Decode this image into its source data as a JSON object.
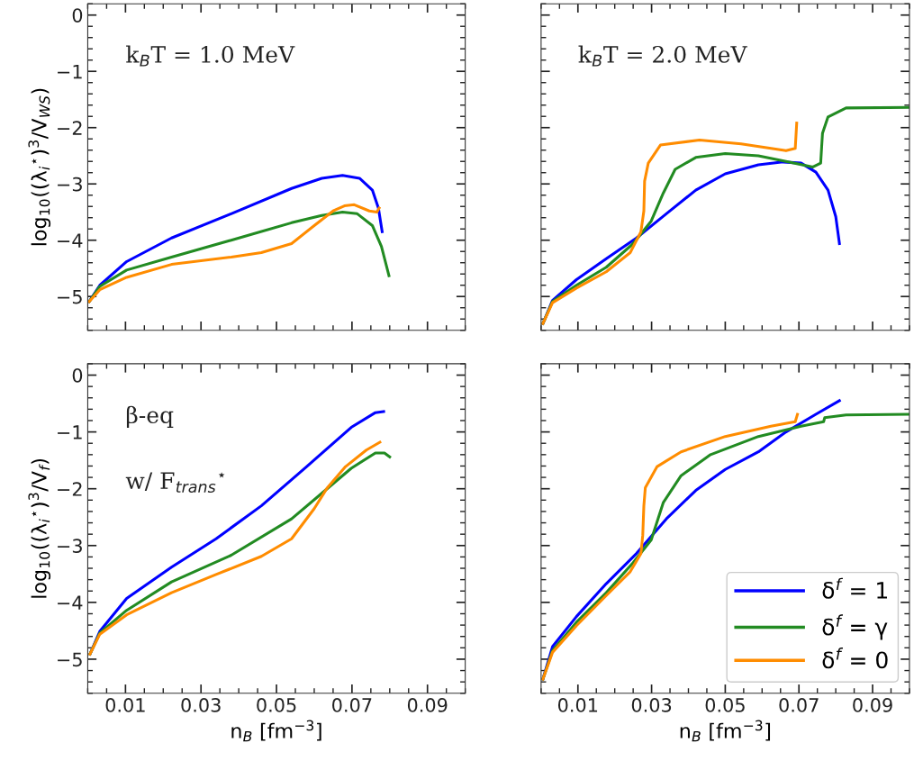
{
  "chart_data": [
    {
      "type": "line",
      "ylabel": "log$_{10}$((λ$_{i}$$^{⋆}$)$^{3}$/V$_{WS}$)",
      "annotations": [
        "k$_{B}$T = 1.0 MeV"
      ],
      "xlim": [
        0,
        0.1
      ],
      "ylim": [
        -5.6,
        0.2
      ],
      "xticks": [
        {
          "value": 0.01,
          "label": null
        },
        {
          "value": 0.03,
          "label": null
        },
        {
          "value": 0.05,
          "label": null
        },
        {
          "value": 0.07,
          "label": null
        },
        {
          "value": 0.09,
          "label": null
        }
      ],
      "yticks": [
        0,
        {
          "value": -1,
          "label": "−1"
        },
        {
          "value": -2,
          "label": "−2"
        },
        {
          "value": -3,
          "label": "−3"
        },
        {
          "value": -4,
          "label": "−4"
        },
        {
          "value": -5,
          "label": "−5"
        }
      ],
      "tick_labels": "y",
      "line_style": "solid",
      "marker": "none",
      "grid": false,
      "legend": false,
      "series": [
        {
          "color": "#0000ff",
          "x": [
            0.0004,
            0.0032,
            0.0103,
            0.0222,
            0.038,
            0.054,
            0.062,
            0.0675,
            0.072,
            0.0754,
            0.077,
            0.078
          ],
          "values": [
            -5.09,
            -4.8,
            -4.38,
            -3.96,
            -3.53,
            -3.08,
            -2.9,
            -2.85,
            -2.9,
            -3.11,
            -3.43,
            -3.85
          ]
        },
        {
          "color": "#228b22",
          "x": [
            0.0004,
            0.0032,
            0.0103,
            0.0222,
            0.038,
            0.054,
            0.062,
            0.0675,
            0.0714,
            0.0754,
            0.0778,
            0.0798
          ],
          "values": [
            -5.09,
            -4.82,
            -4.53,
            -4.3,
            -4.0,
            -3.69,
            -3.56,
            -3.5,
            -3.53,
            -3.74,
            -4.11,
            -4.63
          ]
        },
        {
          "color": "#ff8c00",
          "x": [
            0.0004,
            0.0032,
            0.0103,
            0.0222,
            0.038,
            0.046,
            0.054,
            0.06,
            0.065,
            0.068,
            0.0706,
            0.0746,
            0.0766,
            0.0772
          ],
          "values": [
            -5.09,
            -4.88,
            -4.66,
            -4.43,
            -4.3,
            -4.22,
            -4.06,
            -3.74,
            -3.48,
            -3.39,
            -3.37,
            -3.48,
            -3.5,
            -3.43
          ]
        }
      ]
    },
    {
      "type": "line",
      "annotations": [
        "k$_{B}$T = 2.0 MeV"
      ],
      "xlim": [
        0,
        0.1
      ],
      "ylim": [
        -5.6,
        0.2
      ],
      "xticks": [
        {
          "value": 0.01,
          "label": null
        },
        {
          "value": 0.03,
          "label": null
        },
        {
          "value": 0.05,
          "label": null
        },
        {
          "value": 0.07,
          "label": null
        },
        {
          "value": 0.09,
          "label": null
        }
      ],
      "yticks": [
        {
          "value": 0,
          "label": null
        },
        {
          "value": -1,
          "label": null
        },
        {
          "value": -2,
          "label": null
        },
        {
          "value": -3,
          "label": null
        },
        {
          "value": -4,
          "label": null
        },
        {
          "value": -5,
          "label": null
        }
      ],
      "tick_labels": false,
      "line_style": "solid",
      "marker": "none",
      "grid": false,
      "legend": false,
      "series": [
        {
          "color": "#0000ff",
          "x": [
            0.0005,
            0.0031,
            0.0096,
            0.0177,
            0.0259,
            0.034,
            0.042,
            0.05,
            0.059,
            0.0657,
            0.0706,
            0.0746,
            0.0779,
            0.08,
            0.081
          ],
          "values": [
            -5.48,
            -5.07,
            -4.7,
            -4.33,
            -3.96,
            -3.53,
            -3.11,
            -2.82,
            -2.66,
            -2.61,
            -2.63,
            -2.79,
            -3.11,
            -3.58,
            -4.06
          ]
        },
        {
          "color": "#228b22",
          "x": [
            0.0005,
            0.0031,
            0.0096,
            0.0177,
            0.025,
            0.0299,
            0.0332,
            0.0364,
            0.042,
            0.05,
            0.059,
            0.0665,
            0.0738,
            0.0759,
            0.0764,
            0.0779,
            0.0828,
            0.1
          ],
          "values": [
            -5.48,
            -5.09,
            -4.8,
            -4.48,
            -4.06,
            -3.66,
            -3.16,
            -2.74,
            -2.53,
            -2.46,
            -2.5,
            -2.6,
            -2.7,
            -2.63,
            -2.1,
            -1.81,
            -1.65,
            -1.64
          ]
        },
        {
          "color": "#ff8c00",
          "x": [
            0.0005,
            0.0031,
            0.0096,
            0.0177,
            0.0242,
            0.0271,
            0.0279,
            0.0281,
            0.0291,
            0.0324,
            0.043,
            0.0543,
            0.0665,
            0.069,
            0.0694
          ],
          "values": [
            -5.48,
            -5.11,
            -4.85,
            -4.56,
            -4.22,
            -3.85,
            -3.48,
            -2.95,
            -2.63,
            -2.31,
            -2.22,
            -2.29,
            -2.41,
            -2.37,
            -1.92
          ]
        }
      ]
    },
    {
      "type": "line",
      "ylabel": "log$_{10}$((λ$_{i}$$^{⋆}$)$^{3}$/V$_{f}$)",
      "xlabel": "n$_{B}$ [fm$^{−3}$]",
      "annotations": [
        "β-eq",
        "w/ F$_{trans}$$^{⋆}$"
      ],
      "xlim": [
        0,
        0.1
      ],
      "ylim": [
        -5.6,
        0.2
      ],
      "xticks": [
        0.01,
        0.03,
        0.05,
        0.07,
        0.09
      ],
      "yticks": [
        0,
        {
          "value": -1,
          "label": "−1"
        },
        {
          "value": -2,
          "label": "−2"
        },
        {
          "value": -3,
          "label": "−3"
        },
        {
          "value": -4,
          "label": "−4"
        },
        {
          "value": -5,
          "label": "−5"
        }
      ],
      "line_style": "solid",
      "marker": "none",
      "grid": false,
      "legend": false,
      "series": [
        {
          "color": "#0000ff",
          "x": [
            0.0006,
            0.0032,
            0.0103,
            0.0222,
            0.034,
            0.046,
            0.058,
            0.0698,
            0.0762,
            0.0784
          ],
          "values": [
            -4.91,
            -4.51,
            -3.93,
            -3.38,
            -2.88,
            -2.3,
            -1.61,
            -0.92,
            -0.66,
            -0.64
          ]
        },
        {
          "color": "#228b22",
          "x": [
            0.0006,
            0.0032,
            0.0103,
            0.0222,
            0.038,
            0.054,
            0.062,
            0.0698,
            0.0762,
            0.0786,
            0.08
          ],
          "values": [
            -4.91,
            -4.54,
            -4.14,
            -3.64,
            -3.17,
            -2.53,
            -2.08,
            -1.64,
            -1.37,
            -1.37,
            -1.44
          ]
        },
        {
          "color": "#ff8c00",
          "x": [
            0.0006,
            0.0032,
            0.0103,
            0.0222,
            0.034,
            0.046,
            0.054,
            0.06,
            0.0635,
            0.0683,
            0.0738,
            0.0774
          ],
          "values": [
            -4.91,
            -4.56,
            -4.22,
            -3.83,
            -3.51,
            -3.19,
            -2.88,
            -2.35,
            -1.98,
            -1.61,
            -1.32,
            -1.18
          ]
        }
      ]
    },
    {
      "type": "line",
      "xlabel": "n$_{B}$ [fm$^{−3}$]",
      "xlim": [
        0,
        0.1
      ],
      "ylim": [
        -5.6,
        0.2
      ],
      "xticks": [
        0.01,
        0.03,
        0.05,
        0.07,
        0.09
      ],
      "yticks": [
        {
          "value": 0,
          "label": null
        },
        {
          "value": -1,
          "label": null
        },
        {
          "value": -2,
          "label": null
        },
        {
          "value": -3,
          "label": null
        },
        {
          "value": -4,
          "label": null
        },
        {
          "value": -5,
          "label": null
        }
      ],
      "tick_labels": "x",
      "line_style": "solid",
      "marker": "none",
      "grid": false,
      "legend": "bottom right",
      "series": [
        {
          "name": "δ$^{f}$ = 1",
          "color": "#0000ff",
          "x": [
            0.0005,
            0.0031,
            0.0096,
            0.0177,
            0.0259,
            0.034,
            0.042,
            0.05,
            0.059,
            0.0665,
            0.0746,
            0.081
          ],
          "values": [
            -5.35,
            -4.78,
            -4.25,
            -3.67,
            -3.14,
            -2.53,
            -2.03,
            -1.66,
            -1.35,
            -1.0,
            -0.69,
            -0.45
          ]
        },
        {
          "name": "δ$^{f}$ = γ",
          "color": "#228b22",
          "x": [
            0.0005,
            0.0031,
            0.0096,
            0.0177,
            0.025,
            0.0299,
            0.0332,
            0.038,
            0.046,
            0.059,
            0.0706,
            0.0767,
            0.077,
            0.0828,
            0.1
          ],
          "values": [
            -5.35,
            -4.85,
            -4.35,
            -3.83,
            -3.3,
            -2.9,
            -2.24,
            -1.77,
            -1.4,
            -1.08,
            -0.9,
            -0.82,
            -0.75,
            -0.7,
            -0.69
          ]
        },
        {
          "name": "δ$^{f}$ = 0",
          "color": "#ff8c00",
          "x": [
            0.0005,
            0.0031,
            0.0096,
            0.0177,
            0.0242,
            0.0271,
            0.0276,
            0.0279,
            0.0283,
            0.0315,
            0.038,
            0.05,
            0.0624,
            0.069,
            0.0696
          ],
          "values": [
            -5.35,
            -4.88,
            -4.41,
            -3.88,
            -3.46,
            -3.14,
            -2.82,
            -2.3,
            -1.98,
            -1.61,
            -1.35,
            -1.08,
            -0.9,
            -0.82,
            -0.69
          ]
        }
      ]
    }
  ]
}
